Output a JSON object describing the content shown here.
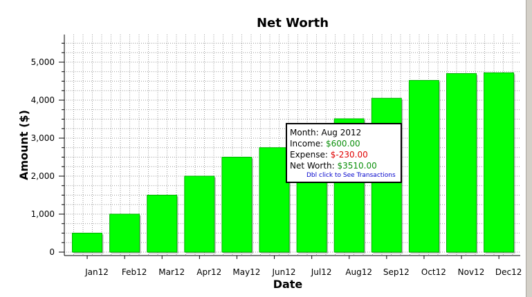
{
  "chart_data": {
    "type": "bar",
    "title": "Net Worth",
    "xlabel": "Date",
    "ylabel": "Amount ($)",
    "categories": [
      "Jan12",
      "Feb12",
      "Mar12",
      "Apr12",
      "May12",
      "Jun12",
      "Jul12",
      "Aug12",
      "Sep12",
      "Oct12",
      "Nov12",
      "Dec12"
    ],
    "values": [
      500,
      1000,
      1500,
      2000,
      2500,
      2750,
      3000,
      3510,
      4050,
      4520,
      4700,
      4720
    ],
    "ylim": [
      0,
      5500
    ],
    "yticks": [
      "0",
      "1,000",
      "2,000",
      "3,000",
      "4,000",
      "5,000"
    ],
    "ytick_values": [
      0,
      1000,
      2000,
      3000,
      4000,
      5000
    ],
    "grid": true,
    "bar_color": "#00ff00"
  },
  "tooltip": {
    "month_label": "Month:",
    "month_value": "Aug 2012",
    "income_label": "Income:",
    "income_value": "$600.00",
    "expense_label": "Expense:",
    "expense_value": "$-230.00",
    "net_label": "Net Worth:",
    "net_value": "$3510.00",
    "hint": "Dbl click to See Transactions"
  },
  "colors": {
    "positive": "#0a8f0a",
    "negative": "#e00000",
    "link": "#0000cc"
  }
}
